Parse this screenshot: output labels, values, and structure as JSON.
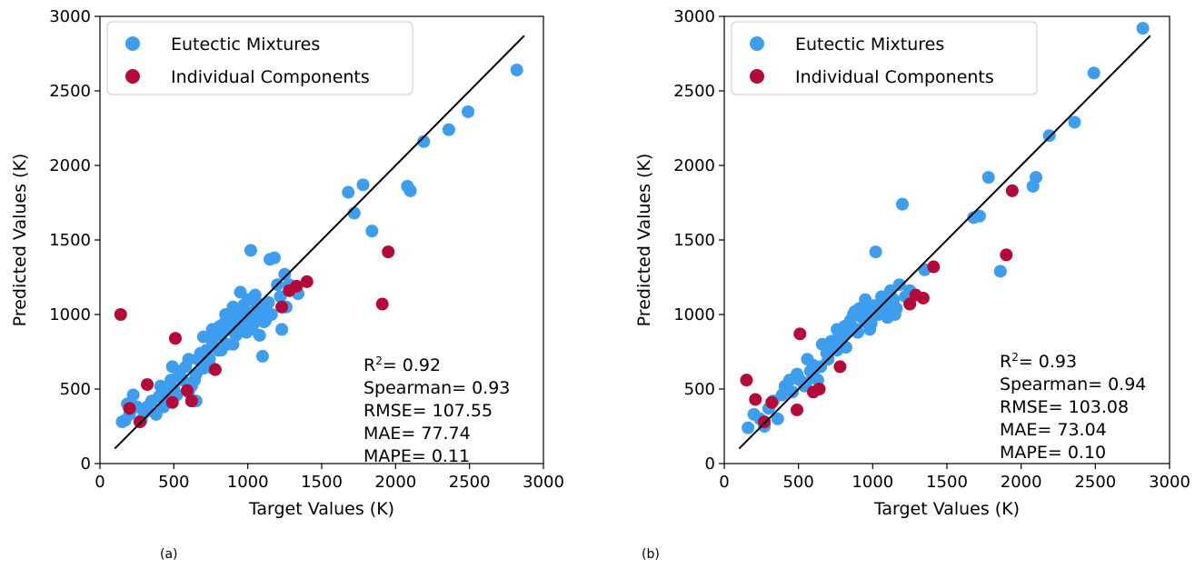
{
  "figure": {
    "captions": [
      "(a)",
      "(b)"
    ]
  },
  "chart_data": [
    {
      "type": "scatter",
      "xlabel": "Target Values (K)",
      "ylabel": "Predicted Values (K)",
      "xlim": [
        0,
        3000
      ],
      "ylim": [
        0,
        3000
      ],
      "xticks": [
        0,
        500,
        1000,
        1500,
        2000,
        2500,
        3000
      ],
      "yticks": [
        0,
        500,
        1000,
        1500,
        2000,
        2500,
        3000
      ],
      "grid": false,
      "legend_position": "top-left",
      "colors": {
        "eutectic": "#3d9ef0",
        "individual": "#b5093a",
        "line": "#000000"
      },
      "identity_line": {
        "x": [
          100,
          2870
        ],
        "y": [
          100,
          2870
        ]
      },
      "metrics": [
        {
          "label": "R",
          "sup": "2",
          "text": "= 0.92"
        },
        {
          "label": "Spearman",
          "sup": "",
          "text": "= 0.93"
        },
        {
          "label": "RMSE",
          "sup": "",
          "text": "= 107.55"
        },
        {
          "label": "MAE",
          "sup": "",
          "text": "= 77.74"
        },
        {
          "label": "MAPE",
          "sup": "",
          "text": "= 0.11"
        }
      ],
      "series": [
        {
          "name": "Eutectic Mixtures",
          "points": [
            [
              150,
              280
            ],
            [
              170,
              290
            ],
            [
              185,
              400
            ],
            [
              200,
              330
            ],
            [
              225,
              460
            ],
            [
              250,
              380
            ],
            [
              280,
              290
            ],
            [
              300,
              340
            ],
            [
              320,
              380
            ],
            [
              350,
              420
            ],
            [
              380,
              330
            ],
            [
              400,
              450
            ],
            [
              410,
              520
            ],
            [
              430,
              380
            ],
            [
              450,
              480
            ],
            [
              460,
              420
            ],
            [
              480,
              560
            ],
            [
              490,
              650
            ],
            [
              500,
              500
            ],
            [
              520,
              460
            ],
            [
              540,
              600
            ],
            [
              560,
              560
            ],
            [
              580,
              650
            ],
            [
              600,
              700
            ],
            [
              620,
              520
            ],
            [
              640,
              560
            ],
            [
              650,
              600
            ],
            [
              660,
              700
            ],
            [
              680,
              740
            ],
            [
              700,
              640
            ],
            [
              720,
              760
            ],
            [
              740,
              700
            ],
            [
              760,
              820
            ],
            [
              780,
              880
            ],
            [
              800,
              760
            ],
            [
              810,
              920
            ],
            [
              820,
              860
            ],
            [
              840,
              940
            ],
            [
              850,
              1000
            ],
            [
              860,
              800
            ],
            [
              880,
              900
            ],
            [
              900,
              1050
            ],
            [
              910,
              960
            ],
            [
              920,
              860
            ],
            [
              940,
              1000
            ],
            [
              960,
              920
            ],
            [
              970,
              1060
            ],
            [
              980,
              940
            ],
            [
              990,
              880
            ],
            [
              1000,
              1100
            ],
            [
              1010,
              980
            ],
            [
              1020,
              1430
            ],
            [
              1030,
              900
            ],
            [
              1040,
              1020
            ],
            [
              1050,
              950
            ],
            [
              1060,
              1080
            ],
            [
              1080,
              860
            ],
            [
              1090,
              1000
            ],
            [
              1100,
              720
            ],
            [
              1110,
              950
            ],
            [
              1120,
              1040
            ],
            [
              1140,
              1080
            ],
            [
              1150,
              1370
            ],
            [
              1160,
              1000
            ],
            [
              1180,
              1380
            ],
            [
              1200,
              1200
            ],
            [
              1220,
              1120
            ],
            [
              1230,
              900
            ],
            [
              1250,
              1270
            ],
            [
              1260,
              1050
            ],
            [
              1280,
              1200
            ],
            [
              1300,
              1170
            ],
            [
              1340,
              1140
            ],
            [
              1680,
              1820
            ],
            [
              1720,
              1680
            ],
            [
              1780,
              1870
            ],
            [
              1840,
              1560
            ],
            [
              2080,
              1860
            ],
            [
              2100,
              1830
            ],
            [
              2190,
              2160
            ],
            [
              2360,
              2240
            ],
            [
              2490,
              2360
            ],
            [
              2820,
              2640
            ],
            [
              700,
              850
            ],
            [
              760,
              900
            ],
            [
              880,
              1000
            ],
            [
              950,
              1150
            ],
            [
              1000,
              950
            ],
            [
              1050,
              1130
            ],
            [
              600,
              480
            ],
            [
              650,
              420
            ],
            [
              530,
              620
            ],
            [
              470,
              430
            ],
            [
              760,
              640
            ],
            [
              820,
              760
            ],
            [
              900,
              800
            ],
            [
              1120,
              960
            ],
            [
              980,
              1000
            ],
            [
              870,
              950
            ]
          ]
        },
        {
          "name": "Individual Components",
          "points": [
            [
              140,
              1000
            ],
            [
              200,
              370
            ],
            [
              270,
              280
            ],
            [
              320,
              530
            ],
            [
              490,
              410
            ],
            [
              510,
              840
            ],
            [
              590,
              490
            ],
            [
              620,
              420
            ],
            [
              780,
              630
            ],
            [
              1230,
              1050
            ],
            [
              1280,
              1160
            ],
            [
              1330,
              1190
            ],
            [
              1400,
              1220
            ],
            [
              1910,
              1070
            ],
            [
              1950,
              1420
            ]
          ]
        }
      ]
    },
    {
      "type": "scatter",
      "xlabel": "Target Values (K)",
      "ylabel": "Predicted Values (K)",
      "xlim": [
        0,
        3000
      ],
      "ylim": [
        0,
        3000
      ],
      "xticks": [
        0,
        500,
        1000,
        1500,
        2000,
        2500,
        3000
      ],
      "yticks": [
        0,
        500,
        1000,
        1500,
        2000,
        2500,
        3000
      ],
      "grid": false,
      "legend_position": "top-left",
      "colors": {
        "eutectic": "#3d9ef0",
        "individual": "#b5093a",
        "line": "#000000"
      },
      "identity_line": {
        "x": [
          100,
          2870
        ],
        "y": [
          100,
          2870
        ]
      },
      "metrics": [
        {
          "label": "R",
          "sup": "2",
          "text": "= 0.93"
        },
        {
          "label": "Spearman",
          "sup": "",
          "text": "= 0.94"
        },
        {
          "label": "RMSE",
          "sup": "",
          "text": "= 103.08"
        },
        {
          "label": "MAE",
          "sup": "",
          "text": "= 73.04"
        },
        {
          "label": "MAPE",
          "sup": "",
          "text": "= 0.10"
        }
      ],
      "series": [
        {
          "name": "Eutectic Mixtures",
          "points": [
            [
              160,
              240
            ],
            [
              200,
              330
            ],
            [
              240,
              300
            ],
            [
              270,
              250
            ],
            [
              300,
              370
            ],
            [
              330,
              420
            ],
            [
              360,
              300
            ],
            [
              390,
              460
            ],
            [
              410,
              520
            ],
            [
              440,
              560
            ],
            [
              460,
              480
            ],
            [
              490,
              600
            ],
            [
              510,
              560
            ],
            [
              540,
              520
            ],
            [
              560,
              700
            ],
            [
              580,
              620
            ],
            [
              600,
              660
            ],
            [
              630,
              560
            ],
            [
              660,
              800
            ],
            [
              690,
              740
            ],
            [
              720,
              820
            ],
            [
              750,
              780
            ],
            [
              770,
              880
            ],
            [
              790,
              840
            ],
            [
              810,
              920
            ],
            [
              830,
              880
            ],
            [
              850,
              960
            ],
            [
              870,
              1000
            ],
            [
              890,
              900
            ],
            [
              910,
              1040
            ],
            [
              930,
              980
            ],
            [
              950,
              1100
            ],
            [
              970,
              1020
            ],
            [
              990,
              940
            ],
            [
              1010,
              1060
            ],
            [
              1020,
              1420
            ],
            [
              1040,
              1000
            ],
            [
              1060,
              1120
            ],
            [
              1080,
              1060
            ],
            [
              1100,
              980
            ],
            [
              1120,
              1160
            ],
            [
              1140,
              1100
            ],
            [
              1160,
              1040
            ],
            [
              1180,
              1200
            ],
            [
              1200,
              1740
            ],
            [
              1220,
              1120
            ],
            [
              1250,
              1160
            ],
            [
              1350,
              1300
            ],
            [
              1680,
              1650
            ],
            [
              1720,
              1660
            ],
            [
              1780,
              1920
            ],
            [
              1860,
              1290
            ],
            [
              2080,
              1860
            ],
            [
              2100,
              1920
            ],
            [
              2190,
              2200
            ],
            [
              2360,
              2290
            ],
            [
              2490,
              2620
            ],
            [
              2820,
              2920
            ],
            [
              700,
              700
            ],
            [
              760,
              900
            ],
            [
              880,
              1020
            ],
            [
              950,
              950
            ],
            [
              1000,
              1000
            ],
            [
              650,
              650
            ],
            [
              600,
              600
            ],
            [
              550,
              540
            ],
            [
              820,
              780
            ],
            [
              900,
              880
            ],
            [
              980,
              900
            ],
            [
              1100,
              1040
            ],
            [
              1150,
              1000
            ],
            [
              760,
              760
            ]
          ]
        },
        {
          "name": "Individual Components",
          "points": [
            [
              150,
              560
            ],
            [
              210,
              430
            ],
            [
              270,
              280
            ],
            [
              320,
              410
            ],
            [
              490,
              360
            ],
            [
              510,
              870
            ],
            [
              600,
              480
            ],
            [
              640,
              500
            ],
            [
              780,
              650
            ],
            [
              1250,
              1070
            ],
            [
              1290,
              1130
            ],
            [
              1340,
              1110
            ],
            [
              1410,
              1320
            ],
            [
              1900,
              1400
            ],
            [
              1940,
              1830
            ]
          ]
        }
      ]
    }
  ]
}
